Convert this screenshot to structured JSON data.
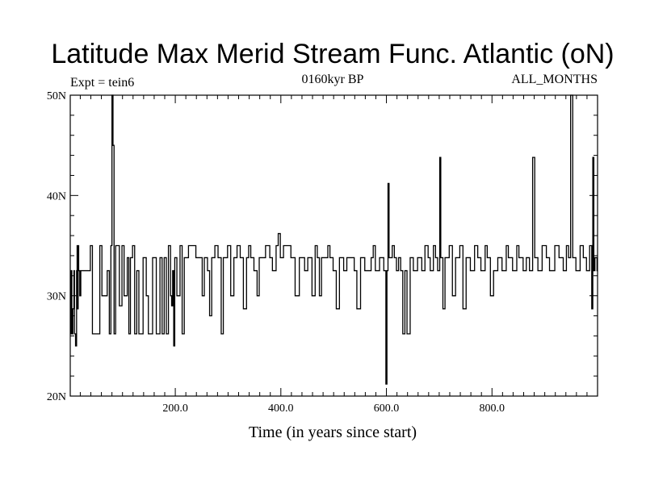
{
  "chart_data": {
    "type": "line",
    "title": "Latitude Max Merid Stream Func. Atlantic (oN)",
    "subtitle_left": "Expt = tein6",
    "subtitle_center": "0160kyr BP",
    "subtitle_right": "ALL_MONTHS",
    "xlabel": "Time (in years since start)",
    "ylabel": "",
    "xlim": [
      1,
      1000
    ],
    "ylim": [
      20,
      50
    ],
    "x_ticks": [
      200,
      400,
      600,
      800
    ],
    "x_tick_labels": [
      "200.0",
      "400.0",
      "600.0",
      "800.0"
    ],
    "x_minor_step": 20,
    "y_ticks": [
      20,
      30,
      40,
      50
    ],
    "y_tick_labels": [
      "20N",
      "30N",
      "40N",
      "50N"
    ],
    "y_minor_step": 2,
    "grid": false,
    "baseline_value": 32.5,
    "levels": [
      26.2,
      28.7,
      30.0,
      32.5,
      33.8,
      35.0
    ],
    "series": [
      {
        "name": "Latitude of max meridional stream function (Atlantic)",
        "keypoints": [
          [
            1,
            26.2
          ],
          [
            3,
            32.5
          ],
          [
            5,
            26.2
          ],
          [
            7,
            28.7
          ],
          [
            9,
            32.5
          ],
          [
            10,
            26.2
          ],
          [
            12,
            25.0
          ],
          [
            14,
            32.5
          ],
          [
            15,
            35.0
          ],
          [
            16,
            28.7
          ],
          [
            17,
            35.0
          ],
          [
            18,
            32.5
          ],
          [
            20,
            30.0
          ],
          [
            22,
            32.5
          ],
          [
            40,
            35.0
          ],
          [
            44,
            26.2
          ],
          [
            58,
            35.0
          ],
          [
            62,
            30.0
          ],
          [
            72,
            32.5
          ],
          [
            76,
            26.2
          ],
          [
            79,
            35.0
          ],
          [
            81,
            50.0
          ],
          [
            83,
            45.0
          ],
          [
            85,
            26.2
          ],
          [
            88,
            35.0
          ],
          [
            95,
            29.0
          ],
          [
            100,
            35.0
          ],
          [
            104,
            30.0
          ],
          [
            110,
            33.8
          ],
          [
            113,
            26.2
          ],
          [
            116,
            33.8
          ],
          [
            120,
            35.0
          ],
          [
            124,
            26.2
          ],
          [
            128,
            32.5
          ],
          [
            132,
            26.2
          ],
          [
            140,
            33.8
          ],
          [
            146,
            30.0
          ],
          [
            150,
            26.2
          ],
          [
            158,
            33.8
          ],
          [
            165,
            26.2
          ],
          [
            172,
            33.8
          ],
          [
            176,
            26.2
          ],
          [
            180,
            33.8
          ],
          [
            184,
            26.2
          ],
          [
            188,
            35.0
          ],
          [
            192,
            30.0
          ],
          [
            194,
            29.0
          ],
          [
            196,
            32.5
          ],
          [
            198,
            25.0
          ],
          [
            200,
            33.8
          ],
          [
            204,
            30.0
          ],
          [
            210,
            35.0
          ],
          [
            214,
            26.2
          ],
          [
            218,
            33.8
          ],
          [
            226,
            35.0
          ],
          [
            240,
            33.8
          ],
          [
            252,
            30.0
          ],
          [
            256,
            33.8
          ],
          [
            262,
            32.5
          ],
          [
            266,
            28.0
          ],
          [
            270,
            33.8
          ],
          [
            276,
            35.0
          ],
          [
            282,
            33.8
          ],
          [
            288,
            26.2
          ],
          [
            292,
            33.8
          ],
          [
            300,
            35.0
          ],
          [
            306,
            30.0
          ],
          [
            312,
            33.8
          ],
          [
            318,
            35.0
          ],
          [
            324,
            33.8
          ],
          [
            330,
            28.7
          ],
          [
            336,
            33.8
          ],
          [
            340,
            35.0
          ],
          [
            344,
            33.8
          ],
          [
            350,
            32.5
          ],
          [
            356,
            30.0
          ],
          [
            360,
            33.8
          ],
          [
            372,
            35.0
          ],
          [
            380,
            33.8
          ],
          [
            385,
            32.5
          ],
          [
            392,
            35.0
          ],
          [
            396,
            36.2
          ],
          [
            400,
            33.8
          ],
          [
            406,
            35.0
          ],
          [
            420,
            33.8
          ],
          [
            428,
            30.0
          ],
          [
            436,
            33.8
          ],
          [
            446,
            32.5
          ],
          [
            452,
            33.8
          ],
          [
            460,
            30.0
          ],
          [
            466,
            35.0
          ],
          [
            470,
            33.8
          ],
          [
            474,
            30.0
          ],
          [
            478,
            33.8
          ],
          [
            490,
            35.0
          ],
          [
            494,
            33.8
          ],
          [
            500,
            32.5
          ],
          [
            506,
            28.7
          ],
          [
            512,
            33.8
          ],
          [
            520,
            32.5
          ],
          [
            526,
            33.8
          ],
          [
            540,
            32.5
          ],
          [
            545,
            28.7
          ],
          [
            552,
            33.8
          ],
          [
            560,
            32.5
          ],
          [
            572,
            33.8
          ],
          [
            576,
            35.0
          ],
          [
            580,
            32.5
          ],
          [
            588,
            33.8
          ],
          [
            596,
            32.5
          ],
          [
            600,
            21.2
          ],
          [
            602,
            32.5
          ],
          [
            604,
            41.2
          ],
          [
            606,
            33.8
          ],
          [
            612,
            35.0
          ],
          [
            616,
            33.8
          ],
          [
            620,
            32.5
          ],
          [
            624,
            33.8
          ],
          [
            628,
            32.5
          ],
          [
            632,
            26.2
          ],
          [
            636,
            32.5
          ],
          [
            640,
            26.2
          ],
          [
            646,
            33.8
          ],
          [
            652,
            32.5
          ],
          [
            660,
            33.8
          ],
          [
            668,
            32.5
          ],
          [
            674,
            35.0
          ],
          [
            680,
            33.8
          ],
          [
            684,
            32.5
          ],
          [
            690,
            35.0
          ],
          [
            694,
            33.8
          ],
          [
            698,
            32.5
          ],
          [
            702,
            43.8
          ],
          [
            704,
            33.8
          ],
          [
            708,
            28.7
          ],
          [
            712,
            33.8
          ],
          [
            720,
            35.0
          ],
          [
            726,
            30.0
          ],
          [
            732,
            33.8
          ],
          [
            740,
            35.0
          ],
          [
            746,
            28.7
          ],
          [
            752,
            33.8
          ],
          [
            760,
            32.5
          ],
          [
            768,
            35.0
          ],
          [
            774,
            33.8
          ],
          [
            780,
            32.5
          ],
          [
            788,
            35.0
          ],
          [
            792,
            33.8
          ],
          [
            798,
            30.0
          ],
          [
            804,
            32.5
          ],
          [
            812,
            33.8
          ],
          [
            820,
            32.5
          ],
          [
            828,
            35.0
          ],
          [
            832,
            33.8
          ],
          [
            840,
            32.5
          ],
          [
            848,
            35.0
          ],
          [
            852,
            33.8
          ],
          [
            860,
            32.5
          ],
          [
            866,
            33.8
          ],
          [
            872,
            32.5
          ],
          [
            878,
            43.8
          ],
          [
            882,
            33.8
          ],
          [
            888,
            32.5
          ],
          [
            896,
            35.0
          ],
          [
            904,
            33.8
          ],
          [
            910,
            32.5
          ],
          [
            920,
            35.0
          ],
          [
            928,
            33.8
          ],
          [
            936,
            32.5
          ],
          [
            942,
            35.0
          ],
          [
            946,
            33.8
          ],
          [
            950,
            50.0
          ],
          [
            954,
            33.8
          ],
          [
            960,
            32.5
          ],
          [
            968,
            35.0
          ],
          [
            974,
            33.8
          ],
          [
            980,
            32.5
          ],
          [
            986,
            35.0
          ],
          [
            990,
            28.7
          ],
          [
            992,
            43.8
          ],
          [
            994,
            32.5
          ],
          [
            996,
            33.8
          ],
          [
            1000,
            32.5
          ]
        ]
      }
    ]
  }
}
